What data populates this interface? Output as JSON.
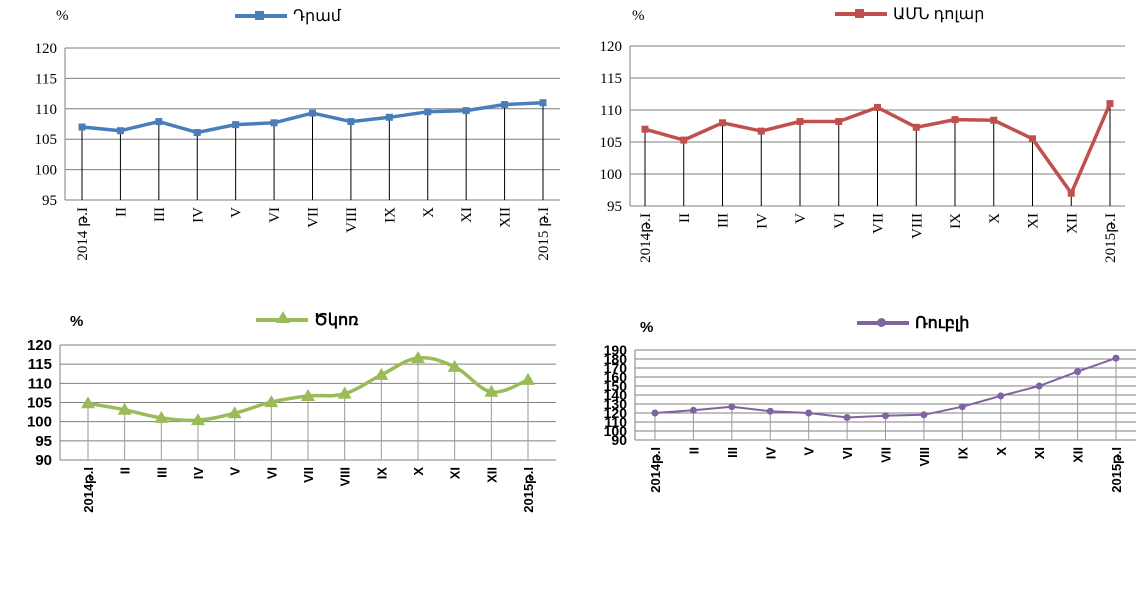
{
  "chart_data": [
    {
      "type": "line",
      "unit_label": "%",
      "legend": "Դրամ",
      "categories": [
        "2014 թ.I",
        "II",
        "III",
        "IV",
        "V",
        "VI",
        "VII",
        "VIII",
        "IX",
        "X",
        "XI",
        "XII",
        "2015 թ.I"
      ],
      "series": [
        {
          "name": "Դրամ",
          "values": [
            107.0,
            106.4,
            107.9,
            106.1,
            107.4,
            107.7,
            109.3,
            107.9,
            108.6,
            109.5,
            109.7,
            110.7,
            111.0
          ]
        }
      ],
      "yticks": [
        "95",
        "100",
        "105",
        "110",
        "115",
        "120"
      ],
      "ylim": [
        95,
        120
      ],
      "grid": true,
      "color": "#4a7ebb",
      "style": "straight line with small square markers"
    },
    {
      "type": "line",
      "unit_label": "%",
      "legend": "ԱՄՆ դոլար",
      "categories": [
        "2014թ.I",
        "II",
        "III",
        "IV",
        "V",
        "VI",
        "VII",
        "VIII",
        "IX",
        "X",
        "XI",
        "XII",
        "2015թ.I"
      ],
      "series": [
        {
          "name": "ԱՄՆ դոլար",
          "values": [
            107.0,
            105.3,
            108.0,
            106.7,
            108.2,
            108.2,
            110.4,
            107.3,
            108.5,
            108.4,
            105.5,
            97.0,
            111.0
          ]
        }
      ],
      "yticks": [
        "95",
        "100",
        "105",
        "110",
        "115",
        "120"
      ],
      "ylim": [
        95,
        120
      ],
      "grid": true,
      "color": "#c0504d",
      "style": "straight line with small square markers"
    },
    {
      "type": "line",
      "unit_label": "%",
      "legend": "Ծկոռ",
      "categories": [
        "2014թ.I",
        "II",
        "III",
        "IV",
        "V",
        "VI",
        "VII",
        "VIII",
        "IX",
        "X",
        "XI",
        "XII",
        "2015թ.I"
      ],
      "series": [
        {
          "name": "Ծկոռ",
          "values": [
            104.8,
            103.1,
            101.0,
            100.4,
            102.2,
            105.1,
            106.7,
            107.3,
            112.2,
            116.6,
            114.3,
            107.8,
            110.9
          ]
        }
      ],
      "yticks": [
        "90",
        "95",
        "100",
        "105",
        "110",
        "115",
        "120"
      ],
      "ylim": [
        90,
        120
      ],
      "grid": true,
      "color": "#9bbb59",
      "style": "smooth line with triangle markers"
    },
    {
      "type": "line",
      "unit_label": "%",
      "legend": "Ռուբլի",
      "categories": [
        "2014թ.I",
        "II",
        "III",
        "IV",
        "V",
        "VI",
        "VII",
        "VIII",
        "IX",
        "X",
        "XI",
        "XII",
        "2015թ.I"
      ],
      "series": [
        {
          "name": "Ռուբլի",
          "values": [
            120,
            123,
            127,
            122,
            120,
            115,
            117,
            118,
            127,
            139,
            150,
            166,
            181
          ]
        }
      ],
      "yticks": [
        "90",
        "100",
        "110",
        "120",
        "130",
        "140",
        "150",
        "160",
        "170",
        "180",
        "190"
      ],
      "ylim": [
        90,
        190
      ],
      "grid": true,
      "color": "#8064a2",
      "style": "straight line with small circle markers"
    }
  ]
}
